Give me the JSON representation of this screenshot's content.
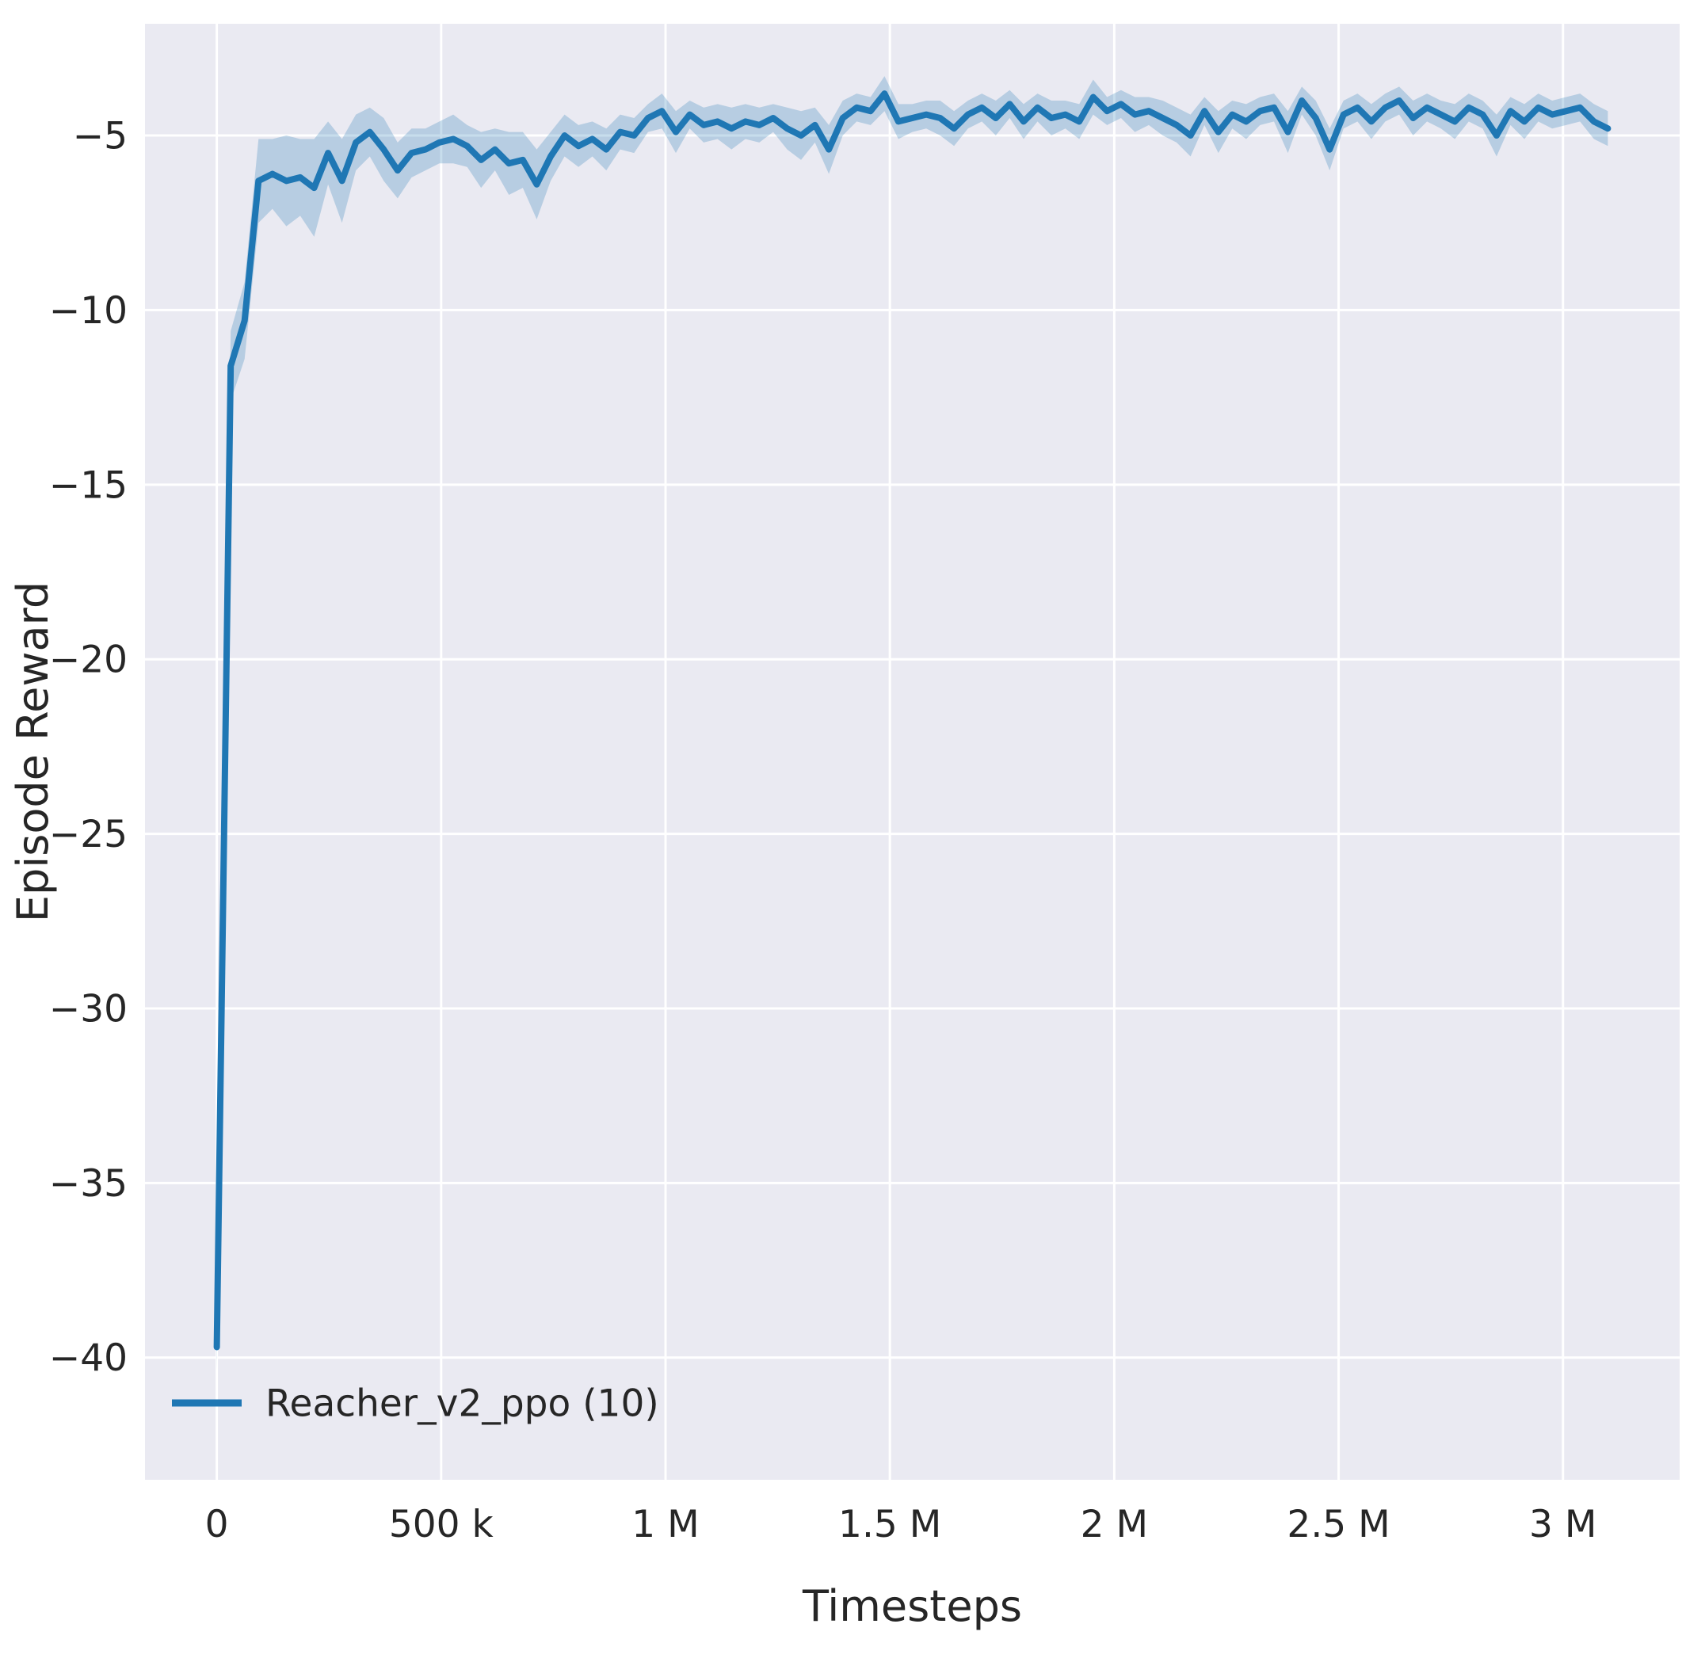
{
  "figure": {
    "background": "#ffffff",
    "axes_background": "#eaeaf2",
    "grid_color": "#ffffff",
    "text_color": "#262626"
  },
  "chart_data": {
    "type": "line",
    "title": "",
    "xlabel": "Timesteps",
    "ylabel": "Episode Reward",
    "xlim": [
      -160000,
      3260000
    ],
    "ylim": [
      -43.5,
      -1.8
    ],
    "grid": true,
    "x_ticks": [
      {
        "value": 0,
        "label": "0"
      },
      {
        "value": 500000,
        "label": "500 k"
      },
      {
        "value": 1000000,
        "label": "1 M"
      },
      {
        "value": 1500000,
        "label": "1.5 M"
      },
      {
        "value": 2000000,
        "label": "2 M"
      },
      {
        "value": 2500000,
        "label": "2.5 M"
      },
      {
        "value": 3000000,
        "label": "3 M"
      }
    ],
    "y_ticks": [
      {
        "value": -5,
        "label": "−5"
      },
      {
        "value": -10,
        "label": "−10"
      },
      {
        "value": -15,
        "label": "−15"
      },
      {
        "value": -20,
        "label": "−20"
      },
      {
        "value": -25,
        "label": "−25"
      },
      {
        "value": -30,
        "label": "−30"
      },
      {
        "value": -35,
        "label": "−35"
      },
      {
        "value": -40,
        "label": "−40"
      }
    ],
    "legend": {
      "position": "lower left",
      "entries": [
        {
          "label": "Reacher_v2_ppo (10)",
          "color": "#1f77b4"
        }
      ]
    },
    "series": [
      {
        "name": "Reacher_v2_ppo (10)",
        "color": "#1f77b4",
        "band_color": "rgba(31,119,180,0.25)",
        "x": [
          0,
          31000,
          62000,
          93000,
          124000,
          155000,
          186000,
          217000,
          248000,
          279000,
          310000,
          341000,
          372000,
          403000,
          434000,
          465000,
          496000,
          527000,
          558000,
          589000,
          620000,
          651000,
          682000,
          713000,
          744000,
          775000,
          806000,
          837000,
          868000,
          899000,
          930000,
          961000,
          992000,
          1023000,
          1054000,
          1085000,
          1116000,
          1147000,
          1178000,
          1209000,
          1240000,
          1271000,
          1302000,
          1333000,
          1364000,
          1395000,
          1426000,
          1457000,
          1488000,
          1519000,
          1550000,
          1581000,
          1612000,
          1643000,
          1674000,
          1705000,
          1736000,
          1767000,
          1798000,
          1829000,
          1860000,
          1891000,
          1922000,
          1953000,
          1984000,
          2015000,
          2046000,
          2077000,
          2108000,
          2139000,
          2170000,
          2201000,
          2232000,
          2263000,
          2294000,
          2325000,
          2356000,
          2387000,
          2418000,
          2449000,
          2480000,
          2511000,
          2542000,
          2573000,
          2604000,
          2635000,
          2666000,
          2697000,
          2728000,
          2759000,
          2790000,
          2821000,
          2852000,
          2883000,
          2914000,
          2945000,
          2976000,
          3007000,
          3038000,
          3069000,
          3100000
        ],
        "y": [
          -39.7,
          -11.6,
          -10.3,
          -6.3,
          -6.1,
          -6.3,
          -6.2,
          -6.5,
          -5.5,
          -6.3,
          -5.2,
          -4.9,
          -5.4,
          -6.0,
          -5.5,
          -5.4,
          -5.2,
          -5.1,
          -5.3,
          -5.7,
          -5.4,
          -5.8,
          -5.7,
          -6.4,
          -5.6,
          -5.0,
          -5.3,
          -5.1,
          -5.4,
          -4.9,
          -5.0,
          -4.5,
          -4.3,
          -4.9,
          -4.4,
          -4.7,
          -4.6,
          -4.8,
          -4.6,
          -4.7,
          -4.5,
          -4.8,
          -5.0,
          -4.7,
          -5.4,
          -4.5,
          -4.2,
          -4.3,
          -3.8,
          -4.6,
          -4.5,
          -4.4,
          -4.5,
          -4.8,
          -4.4,
          -4.2,
          -4.5,
          -4.1,
          -4.6,
          -4.2,
          -4.5,
          -4.4,
          -4.6,
          -3.9,
          -4.3,
          -4.1,
          -4.4,
          -4.3,
          -4.5,
          -4.7,
          -5.0,
          -4.3,
          -4.9,
          -4.4,
          -4.6,
          -4.3,
          -4.2,
          -4.9,
          -4.0,
          -4.5,
          -5.4,
          -4.4,
          -4.2,
          -4.6,
          -4.2,
          -4.0,
          -4.5,
          -4.2,
          -4.4,
          -4.6,
          -4.2,
          -4.4,
          -5.0,
          -4.3,
          -4.6,
          -4.2,
          -4.4,
          -4.3,
          -4.2,
          -4.6,
          -4.8
        ],
        "band_halfwidth": [
          0.7,
          1.0,
          1.1,
          1.2,
          1.0,
          1.3,
          1.1,
          1.4,
          0.9,
          1.2,
          0.8,
          0.7,
          0.9,
          0.8,
          0.7,
          0.6,
          0.6,
          0.7,
          0.6,
          0.8,
          0.6,
          0.9,
          0.8,
          1.0,
          0.7,
          0.6,
          0.6,
          0.5,
          0.6,
          0.5,
          0.5,
          0.4,
          0.5,
          0.6,
          0.4,
          0.5,
          0.5,
          0.6,
          0.5,
          0.5,
          0.4,
          0.6,
          0.7,
          0.5,
          0.7,
          0.5,
          0.4,
          0.4,
          0.5,
          0.5,
          0.4,
          0.4,
          0.5,
          0.5,
          0.4,
          0.4,
          0.5,
          0.4,
          0.5,
          0.4,
          0.5,
          0.4,
          0.5,
          0.5,
          0.4,
          0.4,
          0.5,
          0.4,
          0.5,
          0.5,
          0.6,
          0.4,
          0.6,
          0.4,
          0.5,
          0.4,
          0.4,
          0.6,
          0.4,
          0.5,
          0.6,
          0.4,
          0.4,
          0.5,
          0.4,
          0.4,
          0.5,
          0.4,
          0.4,
          0.5,
          0.4,
          0.4,
          0.6,
          0.4,
          0.5,
          0.4,
          0.4,
          0.4,
          0.4,
          0.5,
          0.5
        ]
      }
    ]
  }
}
